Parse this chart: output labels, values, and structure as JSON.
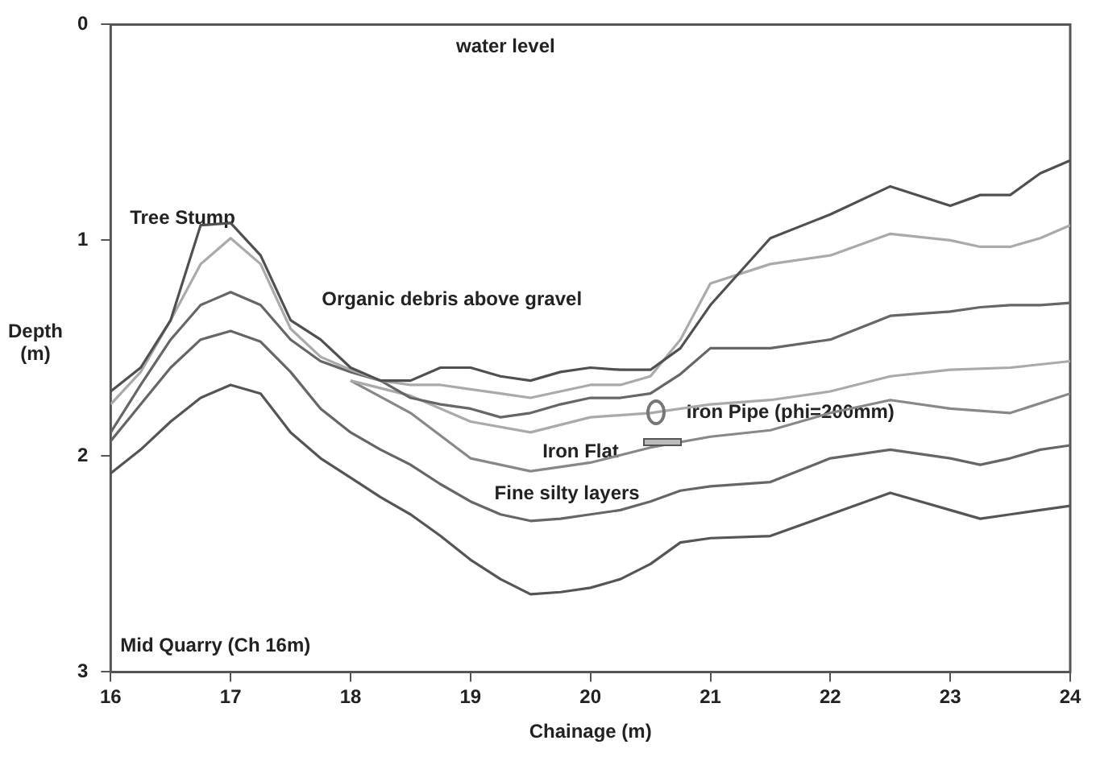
{
  "chart_data": {
    "type": "line",
    "xlabel": "Chainage (m)",
    "ylabel": "Depth (m)",
    "xlim": [
      16,
      24
    ],
    "xticks": [
      16,
      17,
      18,
      19,
      20,
      21,
      22,
      23,
      24
    ],
    "ylim": [
      3,
      0
    ],
    "yticks": [
      0,
      1,
      2,
      3
    ],
    "grid": false,
    "legend": false,
    "marker": "none",
    "line_style": "solid",
    "x": [
      16,
      16.25,
      16.5,
      16.75,
      17,
      17.25,
      17.5,
      17.75,
      18,
      18.25,
      18.5,
      18.75,
      19,
      19.25,
      19.5,
      19.75,
      20,
      20.25,
      20.5,
      20.75,
      21,
      21.5,
      22,
      22.5,
      23,
      23.25,
      23.5,
      23.75,
      24
    ],
    "series": [
      {
        "color": "#505050",
        "values": [
          1.7,
          1.59,
          1.37,
          0.93,
          0.92,
          1.07,
          1.37,
          1.46,
          1.59,
          1.65,
          1.65,
          1.59,
          1.59,
          1.63,
          1.65,
          1.61,
          1.59,
          1.6,
          1.6,
          1.5,
          1.3,
          0.99,
          0.88,
          0.75,
          0.84,
          0.79,
          0.79,
          0.69,
          0.63
        ]
      },
      {
        "color": "#aaaaaa",
        "values": [
          1.76,
          1.61,
          1.37,
          1.11,
          0.99,
          1.11,
          1.41,
          1.54,
          1.6,
          1.65,
          1.67,
          1.67,
          1.69,
          1.71,
          1.73,
          1.7,
          1.67,
          1.67,
          1.63,
          1.46,
          1.2,
          1.11,
          1.07,
          0.97,
          1.0,
          1.03,
          1.03,
          0.99,
          0.93
        ]
      },
      {
        "color": "#666666",
        "values": [
          1.89,
          1.67,
          1.46,
          1.3,
          1.24,
          1.3,
          1.46,
          1.56,
          1.61,
          1.65,
          1.73,
          1.76,
          1.78,
          1.82,
          1.8,
          1.76,
          1.73,
          1.73,
          1.71,
          1.62,
          1.5,
          1.5,
          1.46,
          1.35,
          1.33,
          1.31,
          1.3,
          1.3,
          1.29
        ]
      },
      {
        "color": "#aaaaaa",
        "x": [
          18,
          18.5,
          19,
          19.5,
          20,
          20.5,
          21,
          21.5,
          22,
          22.5,
          23,
          23.5,
          24
        ],
        "values": [
          1.65,
          1.72,
          1.84,
          1.89,
          1.82,
          1.8,
          1.76,
          1.74,
          1.7,
          1.63,
          1.6,
          1.59,
          1.56
        ]
      },
      {
        "color": "#888888",
        "x": [
          18,
          18.5,
          19,
          19.5,
          20,
          20.5,
          21,
          21.5,
          22,
          22.5,
          23,
          23.5,
          24
        ],
        "values": [
          1.65,
          1.8,
          2.01,
          2.07,
          2.03,
          1.96,
          1.91,
          1.88,
          1.8,
          1.74,
          1.78,
          1.8,
          1.71
        ]
      },
      {
        "color": "#666666",
        "values": [
          1.93,
          1.76,
          1.59,
          1.46,
          1.42,
          1.47,
          1.61,
          1.78,
          1.89,
          1.97,
          2.04,
          2.13,
          2.21,
          2.27,
          2.3,
          2.29,
          2.27,
          2.25,
          2.21,
          2.16,
          2.14,
          2.12,
          2.01,
          1.97,
          2.01,
          2.04,
          2.01,
          1.97,
          1.95
        ]
      },
      {
        "color": "#555555",
        "values": [
          2.08,
          1.97,
          1.84,
          1.73,
          1.67,
          1.71,
          1.89,
          2.01,
          2.1,
          2.19,
          2.27,
          2.37,
          2.48,
          2.57,
          2.64,
          2.63,
          2.61,
          2.57,
          2.5,
          2.4,
          2.38,
          2.37,
          2.27,
          2.17,
          2.25,
          2.29,
          2.27,
          2.25,
          2.23
        ]
      }
    ],
    "annotations": [
      "water level",
      "Tree Stump",
      "Organic debris above gravel",
      "Iron Pipe (phi=200mm)",
      "Iron Flat",
      "Fine silty layers",
      "Mid Quarry (Ch 16m)"
    ]
  }
}
